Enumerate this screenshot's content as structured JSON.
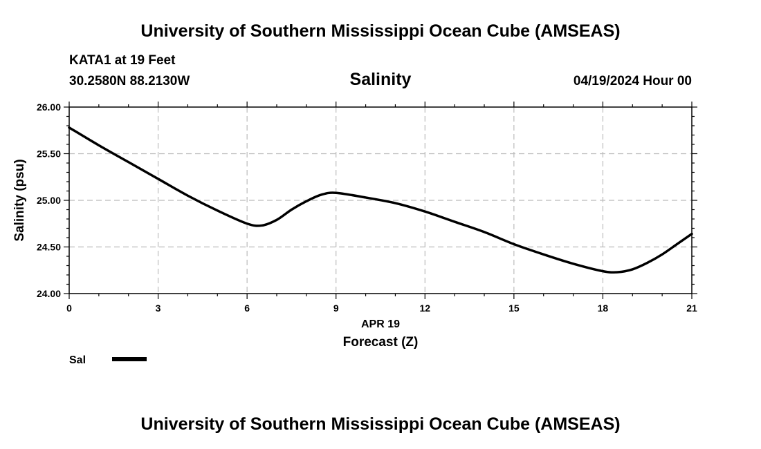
{
  "header": {
    "title_top": "University of Southern Mississippi Ocean Cube (AMSEAS)",
    "station": "KATA1 at 19 Feet",
    "coords": "30.2580N  88.2130W",
    "datetime": "04/19/2024 Hour 00"
  },
  "legend": {
    "label": "Sal"
  },
  "footer": {
    "title_bottom": "University of Southern Mississippi Ocean Cube (AMSEAS)"
  },
  "chart_data": {
    "type": "line",
    "title": "Salinity",
    "xlabel": "Forecast (Z)",
    "xsublabel": "APR 19",
    "ylabel": "Salinity (psu)",
    "xlim": [
      0,
      21
    ],
    "ylim": [
      24.0,
      26.0
    ],
    "xticks": [
      0,
      3,
      6,
      9,
      12,
      15,
      18,
      21
    ],
    "yticks": [
      24.0,
      24.5,
      25.0,
      25.5,
      26.0
    ],
    "ytick_labels": [
      "24.00",
      "24.50",
      "25.00",
      "25.50",
      "26.00"
    ],
    "grid": true,
    "series": [
      {
        "name": "Sal",
        "color": "#000000",
        "x": [
          0,
          1,
          2,
          3,
          4,
          5,
          6,
          6.5,
          7,
          7.5,
          8,
          8.5,
          9,
          10,
          11,
          12,
          13,
          14,
          15,
          16,
          17,
          18,
          18.5,
          19,
          19.5,
          20,
          20.5,
          21
        ],
        "y": [
          25.78,
          25.59,
          25.41,
          25.23,
          25.05,
          24.89,
          24.75,
          24.73,
          24.79,
          24.9,
          24.99,
          25.06,
          25.08,
          25.03,
          24.97,
          24.88,
          24.77,
          24.66,
          24.53,
          24.42,
          24.32,
          24.24,
          24.23,
          24.26,
          24.33,
          24.42,
          24.53,
          24.64
        ]
      }
    ]
  }
}
